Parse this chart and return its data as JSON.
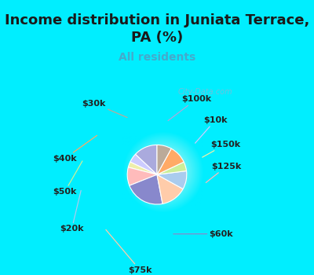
{
  "title": "Income distribution in Juniata Terrace,\nPA (%)",
  "subtitle": "All residents",
  "title_color": "#1a1a1a",
  "subtitle_color": "#44aacc",
  "background_cyan": "#00eeff",
  "watermark": "City-Data.com",
  "labels": [
    "$100k",
    "$10k",
    "$150k",
    "$125k",
    "$60k",
    "$75k",
    "$20k",
    "$50k",
    "$40k",
    "$30k"
  ],
  "values": [
    13,
    5,
    3,
    10,
    22,
    14,
    10,
    5,
    10,
    8
  ],
  "colors": [
    "#aaaadd",
    "#ccccff",
    "#eeeeaa",
    "#ffbbbb",
    "#8888cc",
    "#ffccaa",
    "#aaccee",
    "#ccee99",
    "#ffaa66",
    "#bbaa99"
  ],
  "label_colors": [
    "#aaaadd",
    "#ccccff",
    "#eeeeaa",
    "#ffbbbb",
    "#8888cc",
    "#ffccaa",
    "#aaccee",
    "#ccee99",
    "#ffaa66",
    "#bbaa99"
  ],
  "title_fontsize": 13,
  "subtitle_fontsize": 10,
  "label_fontsize": 8
}
